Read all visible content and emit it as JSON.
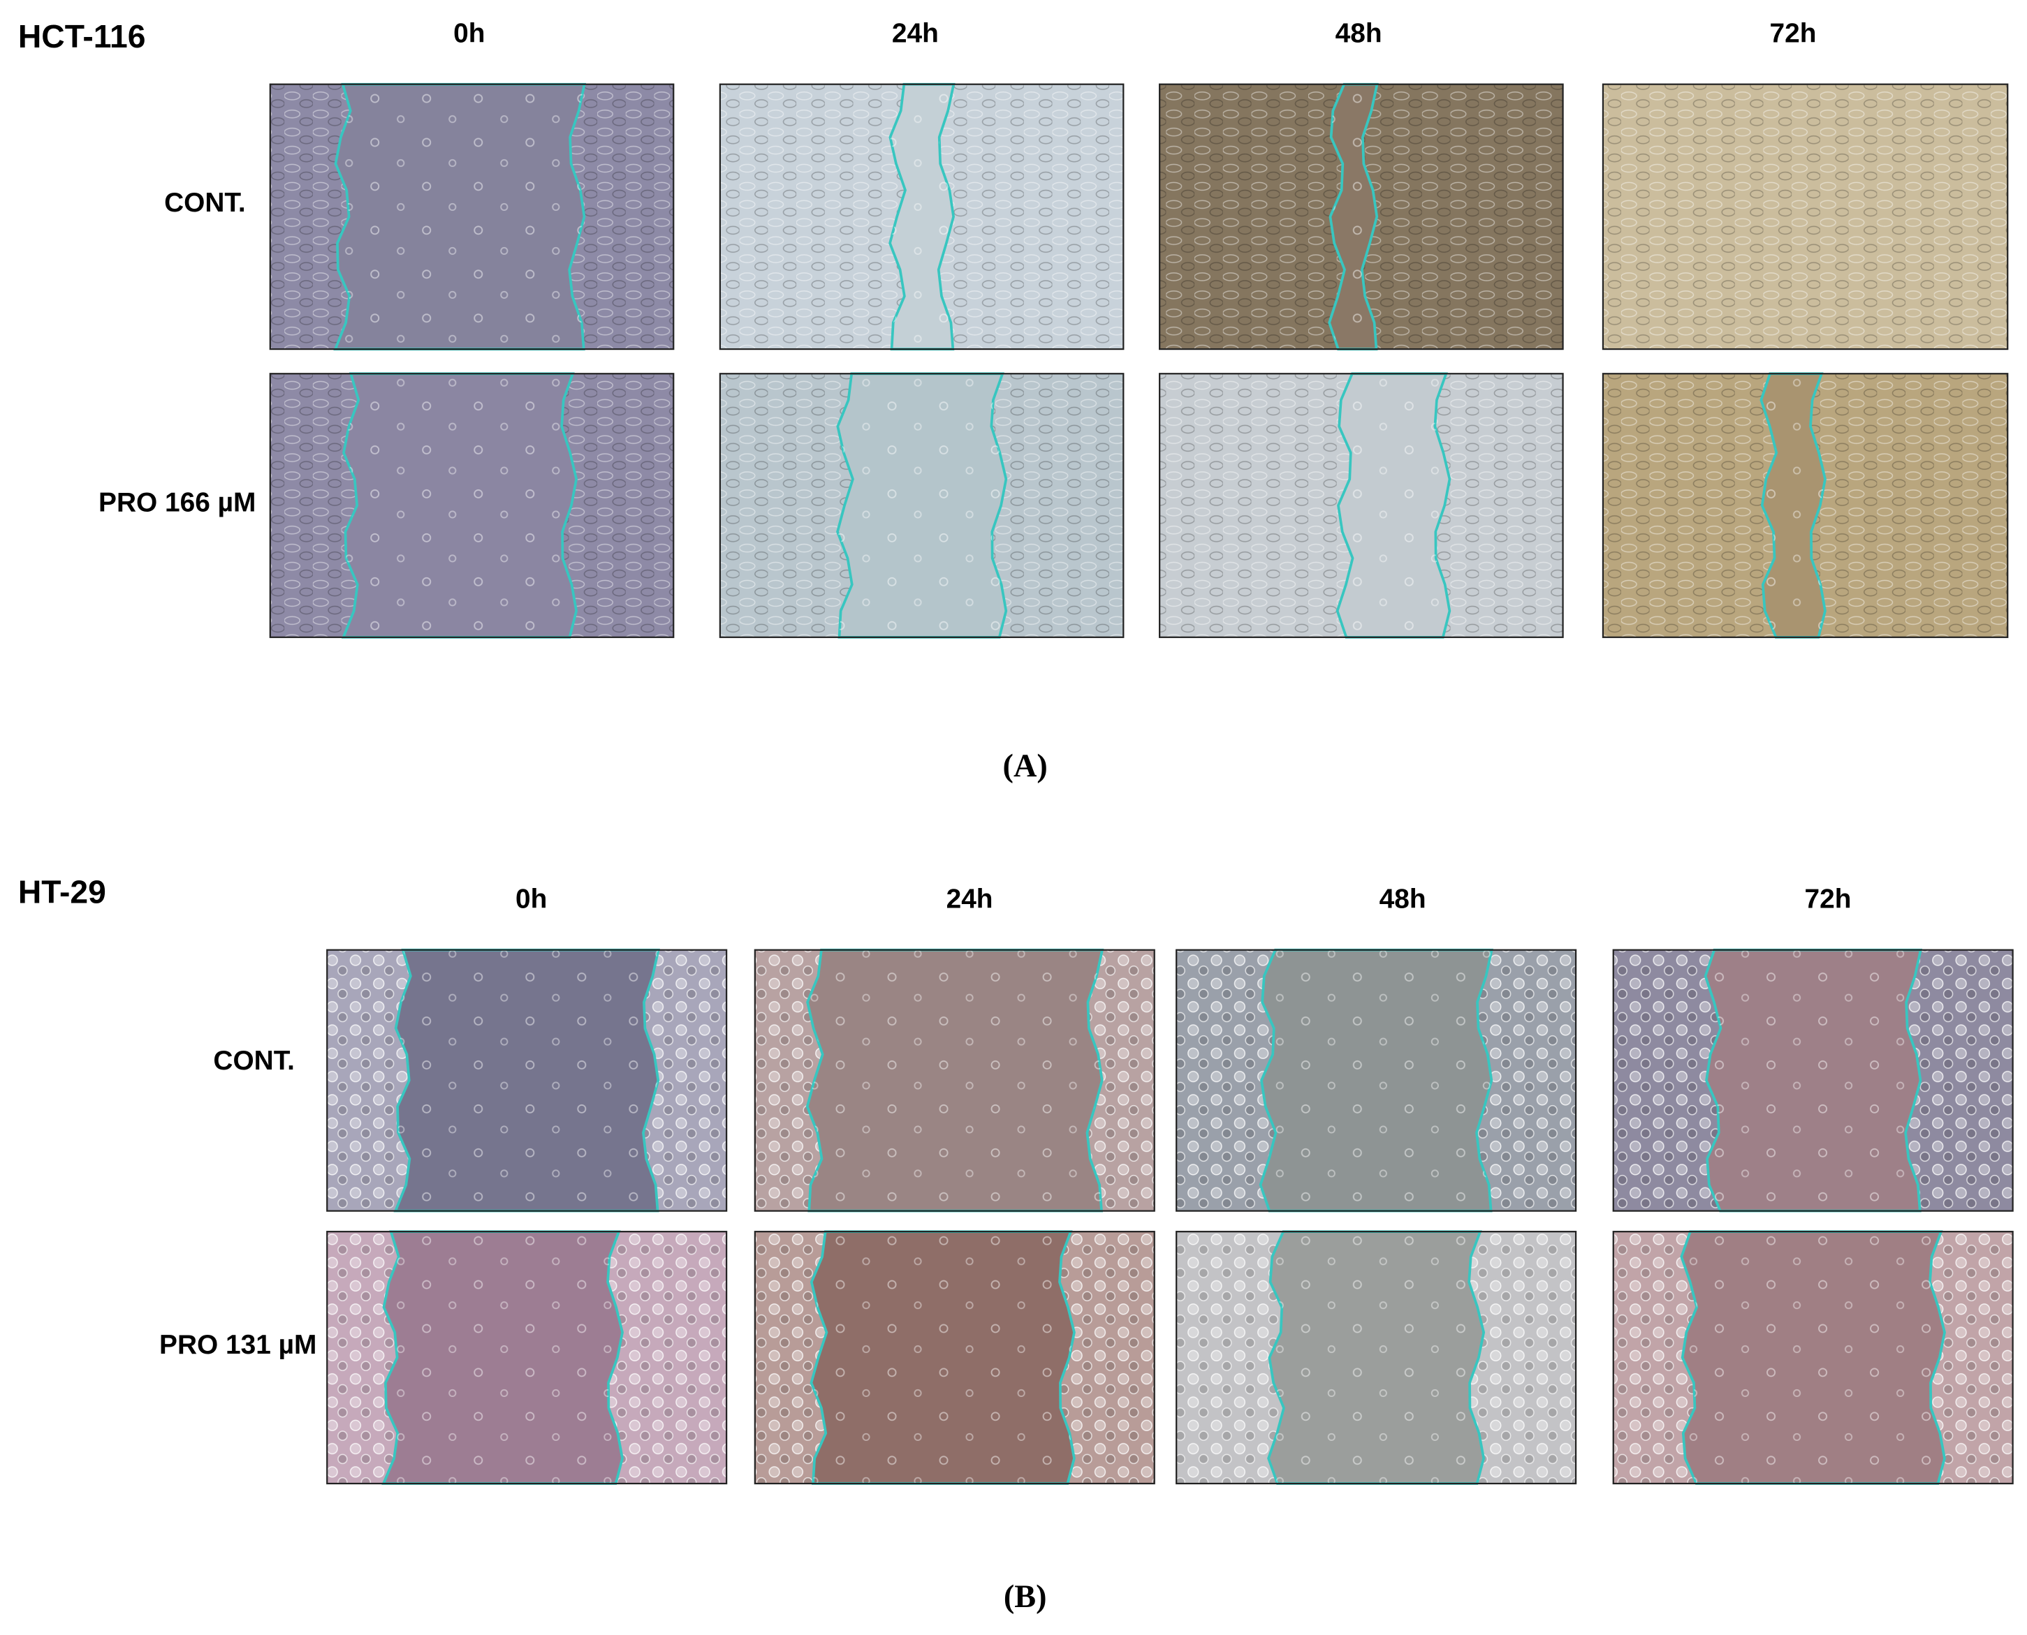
{
  "panels": [
    {
      "cell_line": "HCT-116",
      "time_points": [
        "0h",
        "24h",
        "48h",
        "72h"
      ],
      "rows": [
        "CONT.",
        "PRO 166 µM"
      ],
      "label": "(A)"
    },
    {
      "cell_line": "HT-29",
      "time_points": [
        "0h",
        "24h",
        "48h",
        "72h"
      ],
      "rows": [
        "CONT.",
        "PRO 131 µM"
      ],
      "label": "(B)"
    }
  ]
}
